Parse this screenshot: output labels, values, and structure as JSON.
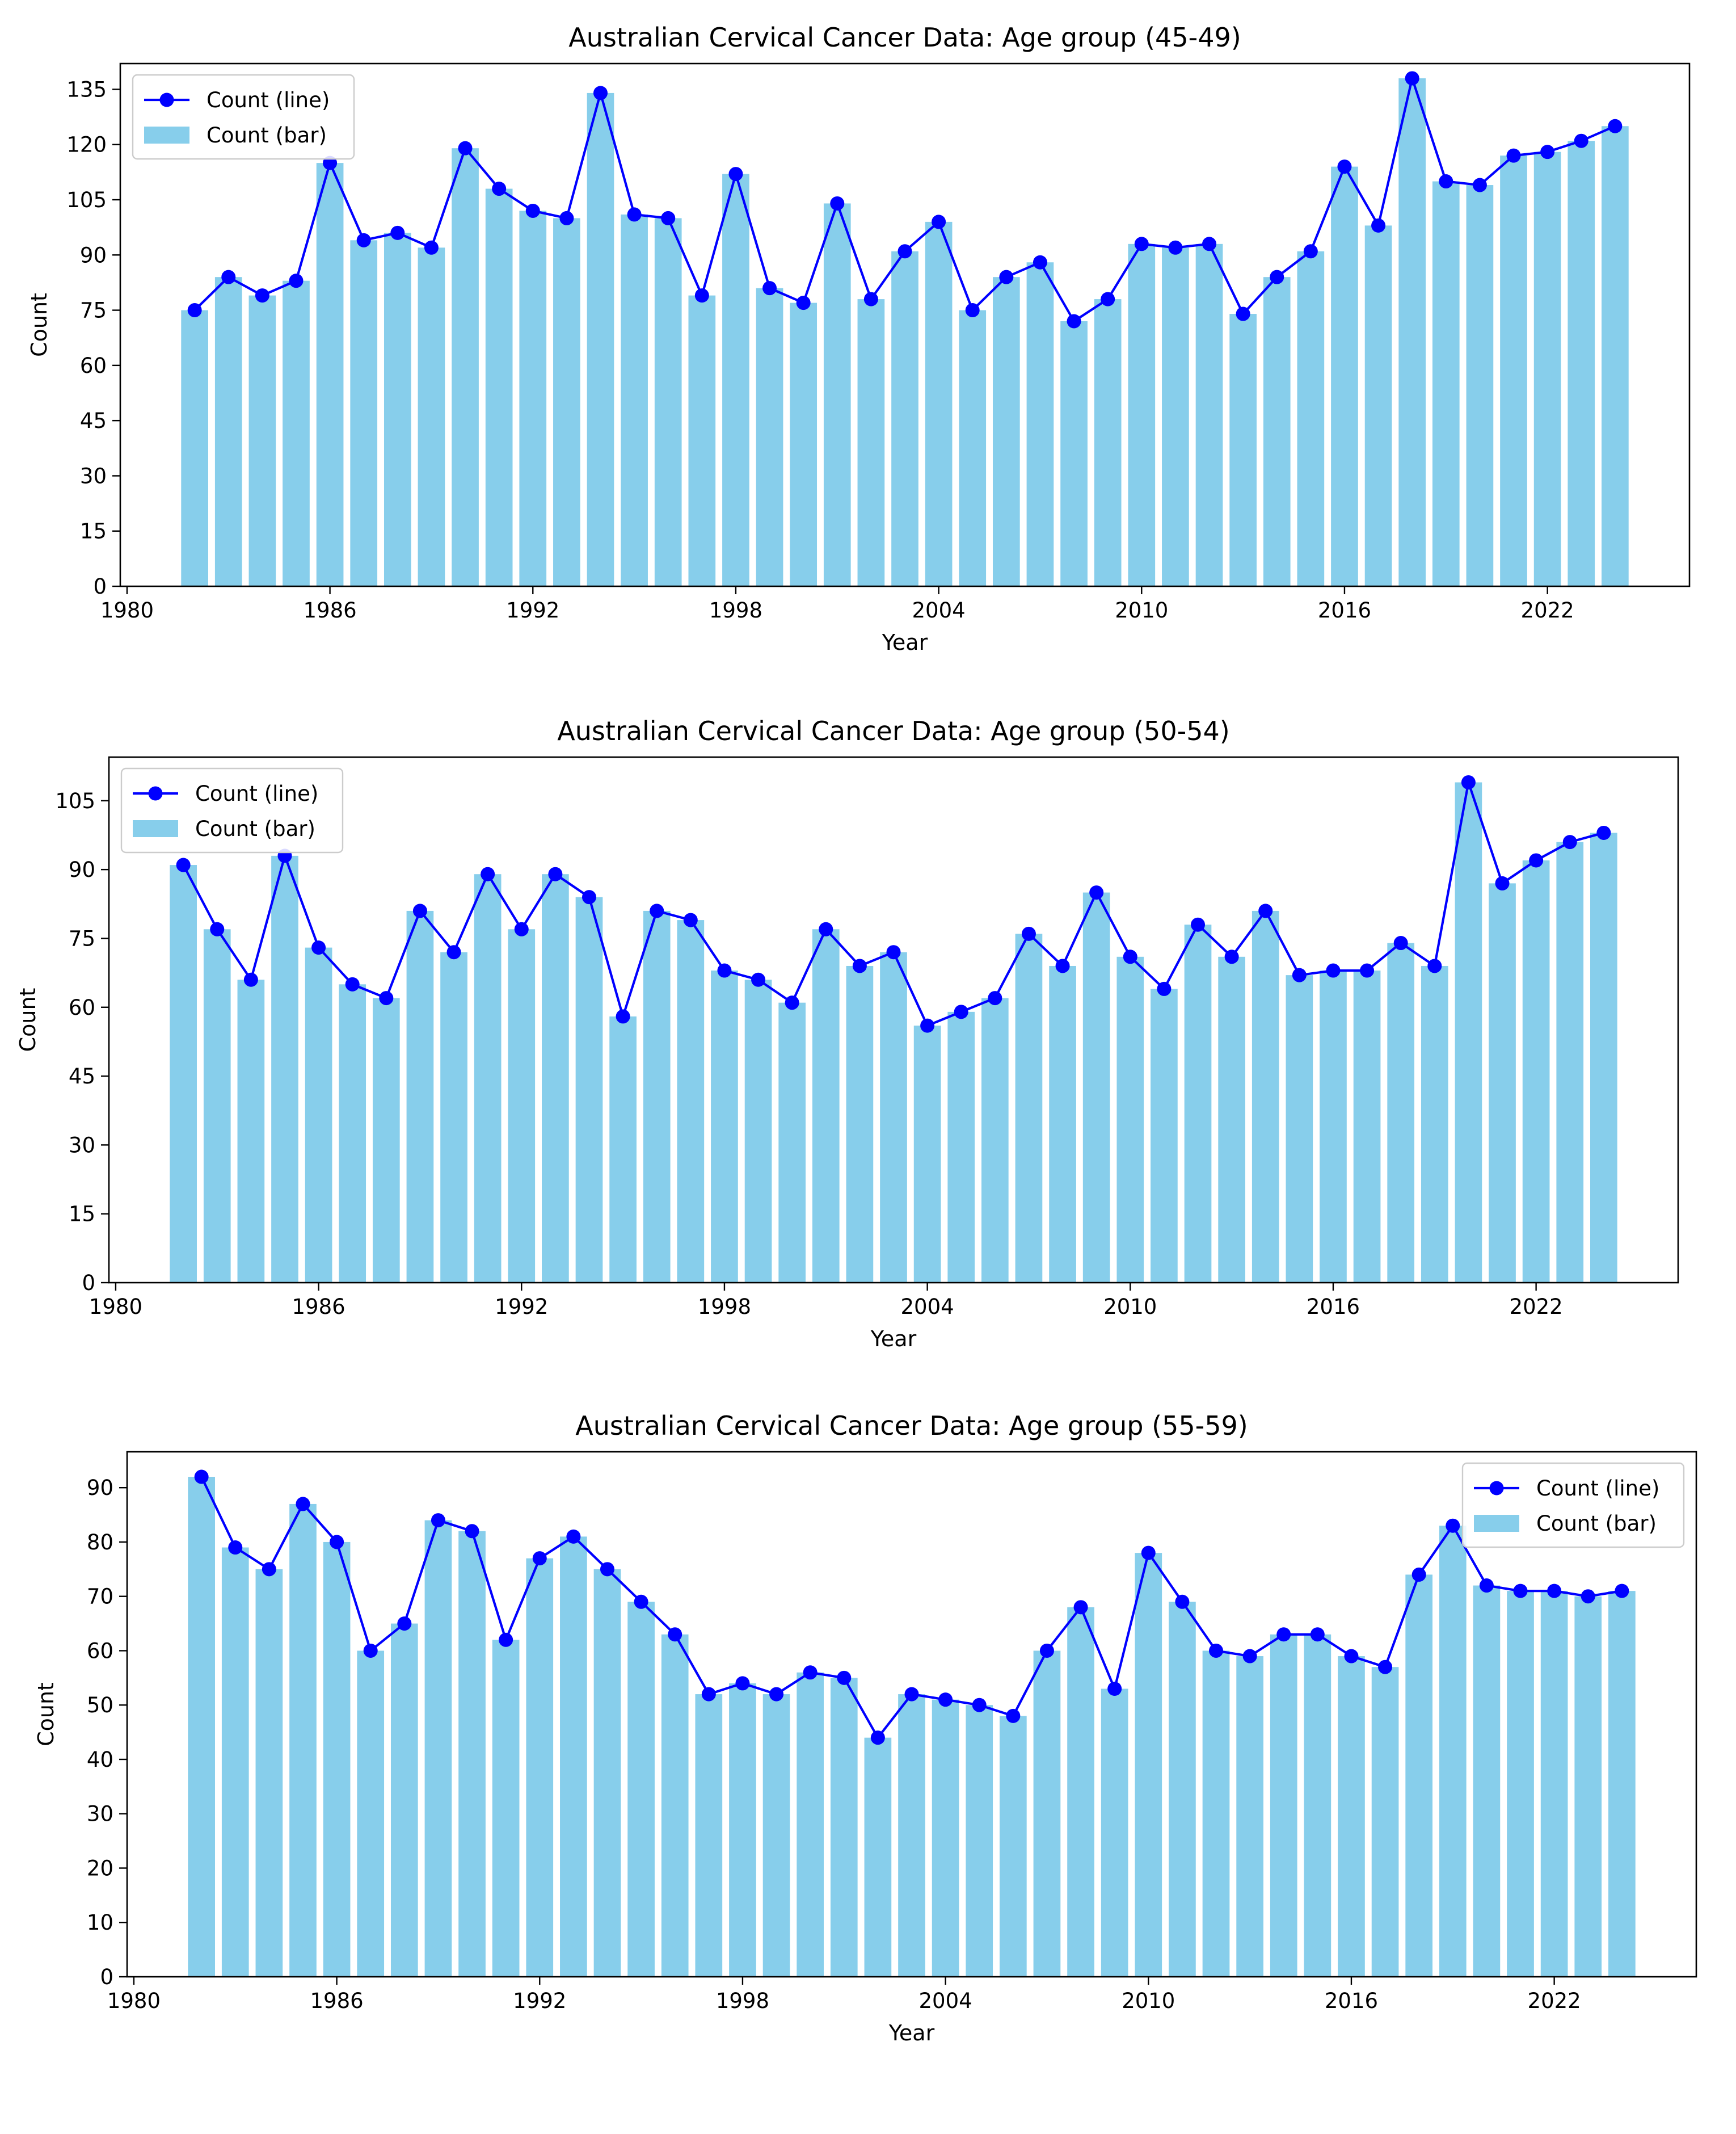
{
  "colors": {
    "bar": "#87CEEB",
    "line": "#0000FF",
    "marker": "#0000FF",
    "axis": "#000000",
    "background": "#ffffff"
  },
  "chart_data": [
    {
      "type": "bar",
      "title": "Australian Cervical Cancer Data: Age group (45-49)",
      "xlabel": "Year",
      "ylabel": "Count",
      "xlim": [
        1979.8,
        2026.2
      ],
      "ylim": [
        0,
        142
      ],
      "xticks": [
        1980,
        1986,
        1992,
        1998,
        2004,
        2010,
        2016,
        2022
      ],
      "yticks": [
        0,
        15,
        30,
        45,
        60,
        75,
        90,
        105,
        120,
        135
      ],
      "grid": false,
      "legend": {
        "position": "top-left",
        "line_label": "Count (line)",
        "bar_label": "Count (bar)"
      },
      "x": [
        1982,
        1983,
        1984,
        1985,
        1986,
        1987,
        1988,
        1989,
        1990,
        1991,
        1992,
        1993,
        1994,
        1995,
        1996,
        1997,
        1998,
        1999,
        2000,
        2001,
        2002,
        2003,
        2004,
        2005,
        2006,
        2007,
        2008,
        2009,
        2010,
        2011,
        2012,
        2013,
        2014,
        2015,
        2016,
        2017,
        2018,
        2019,
        2020,
        2021,
        2022,
        2023,
        2024
      ],
      "series": [
        {
          "name": "Count (bar)",
          "type": "bar",
          "values": [
            75,
            84,
            79,
            83,
            115,
            94,
            96,
            92,
            119,
            108,
            102,
            100,
            134,
            101,
            100,
            79,
            112,
            81,
            77,
            104,
            78,
            91,
            99,
            75,
            84,
            88,
            72,
            78,
            93,
            92,
            93,
            74,
            84,
            91,
            114,
            98,
            138,
            110,
            109,
            117,
            118,
            121,
            125
          ]
        },
        {
          "name": "Count (line)",
          "type": "line",
          "values": [
            75,
            84,
            79,
            83,
            115,
            94,
            96,
            92,
            119,
            108,
            102,
            100,
            134,
            101,
            100,
            79,
            112,
            81,
            77,
            104,
            78,
            91,
            99,
            75,
            84,
            88,
            72,
            78,
            93,
            92,
            93,
            74,
            84,
            91,
            114,
            98,
            138,
            110,
            109,
            117,
            118,
            121,
            125
          ]
        }
      ]
    },
    {
      "type": "bar",
      "title": "Australian Cervical Cancer Data: Age group (50-54)",
      "xlabel": "Year",
      "ylabel": "Count",
      "xlim": [
        1979.8,
        2026.2
      ],
      "ylim": [
        0,
        114.5
      ],
      "xticks": [
        1980,
        1986,
        1992,
        1998,
        2004,
        2010,
        2016,
        2022
      ],
      "yticks": [
        0,
        15,
        30,
        45,
        60,
        75,
        90,
        105
      ],
      "grid": false,
      "legend": {
        "position": "top-left",
        "line_label": "Count (line)",
        "bar_label": "Count (bar)"
      },
      "x": [
        1982,
        1983,
        1984,
        1985,
        1986,
        1987,
        1988,
        1989,
        1990,
        1991,
        1992,
        1993,
        1994,
        1995,
        1996,
        1997,
        1998,
        1999,
        2000,
        2001,
        2002,
        2003,
        2004,
        2005,
        2006,
        2007,
        2008,
        2009,
        2010,
        2011,
        2012,
        2013,
        2014,
        2015,
        2016,
        2017,
        2018,
        2019,
        2020,
        2021,
        2022,
        2023,
        2024
      ],
      "series": [
        {
          "name": "Count (bar)",
          "type": "bar",
          "values": [
            91,
            77,
            66,
            93,
            73,
            65,
            62,
            81,
            72,
            89,
            77,
            89,
            84,
            58,
            81,
            79,
            68,
            66,
            61,
            77,
            69,
            72,
            56,
            59,
            62,
            76,
            69,
            85,
            71,
            64,
            78,
            71,
            81,
            67,
            68,
            68,
            74,
            69,
            109,
            87,
            92,
            96,
            98
          ]
        },
        {
          "name": "Count (line)",
          "type": "line",
          "values": [
            91,
            77,
            66,
            93,
            73,
            65,
            62,
            81,
            72,
            89,
            77,
            89,
            84,
            58,
            81,
            79,
            68,
            66,
            61,
            77,
            69,
            72,
            56,
            59,
            62,
            76,
            69,
            85,
            71,
            64,
            78,
            71,
            81,
            67,
            68,
            68,
            74,
            69,
            109,
            87,
            92,
            96,
            98
          ]
        }
      ]
    },
    {
      "type": "bar",
      "title": "Australian Cervical Cancer Data: Age group (55-59)",
      "xlabel": "Year",
      "ylabel": "Count",
      "xlim": [
        1979.8,
        2026.2
      ],
      "ylim": [
        0,
        96.6
      ],
      "xticks": [
        1980,
        1986,
        1992,
        1998,
        2004,
        2010,
        2016,
        2022
      ],
      "yticks": [
        0,
        10,
        20,
        30,
        40,
        50,
        60,
        70,
        80,
        90
      ],
      "grid": false,
      "legend": {
        "position": "top-right",
        "line_label": "Count (line)",
        "bar_label": "Count (bar)"
      },
      "x": [
        1982,
        1983,
        1984,
        1985,
        1986,
        1987,
        1988,
        1989,
        1990,
        1991,
        1992,
        1993,
        1994,
        1995,
        1996,
        1997,
        1998,
        1999,
        2000,
        2001,
        2002,
        2003,
        2004,
        2005,
        2006,
        2007,
        2008,
        2009,
        2010,
        2011,
        2012,
        2013,
        2014,
        2015,
        2016,
        2017,
        2018,
        2019,
        2020,
        2021,
        2022,
        2023,
        2024
      ],
      "series": [
        {
          "name": "Count (bar)",
          "type": "bar",
          "values": [
            92,
            79,
            75,
            87,
            80,
            60,
            65,
            84,
            82,
            62,
            77,
            81,
            75,
            69,
            63,
            52,
            54,
            52,
            56,
            55,
            44,
            52,
            51,
            50,
            48,
            60,
            68,
            53,
            78,
            69,
            60,
            59,
            63,
            63,
            59,
            57,
            74,
            83,
            72,
            71,
            71,
            70,
            71
          ]
        },
        {
          "name": "Count (line)",
          "type": "line",
          "values": [
            92,
            79,
            75,
            87,
            80,
            60,
            65,
            84,
            82,
            62,
            77,
            81,
            75,
            69,
            63,
            52,
            54,
            52,
            56,
            55,
            44,
            52,
            51,
            50,
            48,
            60,
            68,
            53,
            78,
            69,
            60,
            59,
            63,
            63,
            59,
            57,
            74,
            83,
            72,
            71,
            71,
            70,
            71
          ]
        }
      ]
    }
  ]
}
